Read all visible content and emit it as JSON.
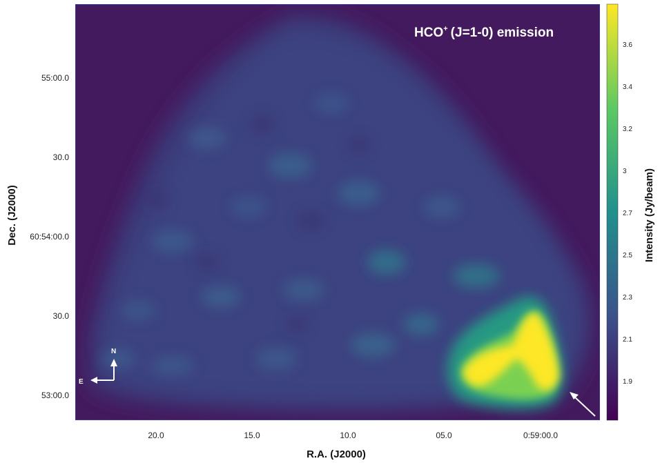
{
  "image": {
    "title_main": "HCO",
    "title_superscript": "+",
    "title_rest": "(J=1-0) emission",
    "xlabel": "R.A. (J2000)",
    "ylabel": "Dec. (J2000)",
    "x_ticks": [
      "20.0",
      "15.0",
      "10.0",
      "05.0",
      "0:59:00.0"
    ],
    "y_ticks": [
      "55:00.0",
      "30.0",
      "60:54:00.0",
      "30.0",
      "53:00.0"
    ],
    "colorbar": {
      "label": "Intensity (Jy/beam)",
      "ticks": [
        "3.6",
        "3.4",
        "3.2",
        "3",
        "2.7",
        "2.5",
        "2.3",
        "2.1",
        "1.9"
      ],
      "colormap": "viridis",
      "colors": [
        "#440154",
        "#3b528b",
        "#21908d",
        "#5dc963",
        "#fde725"
      ]
    },
    "compass": {
      "north": "N",
      "east": "E"
    },
    "colors": {
      "background": "#440d5a",
      "frame": "#3355cc"
    }
  }
}
